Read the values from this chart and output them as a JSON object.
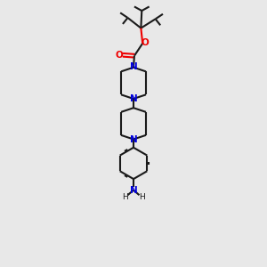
{
  "background_color": "#e8e8e8",
  "bond_color": "#1a1a1a",
  "nitrogen_color": "#0000dd",
  "oxygen_color": "#ee0000",
  "line_width": 1.5,
  "figsize": [
    3.0,
    3.0
  ],
  "dpi": 100,
  "xlim": [
    -1.0,
    1.0
  ],
  "ylim": [
    -3.2,
    3.2
  ]
}
